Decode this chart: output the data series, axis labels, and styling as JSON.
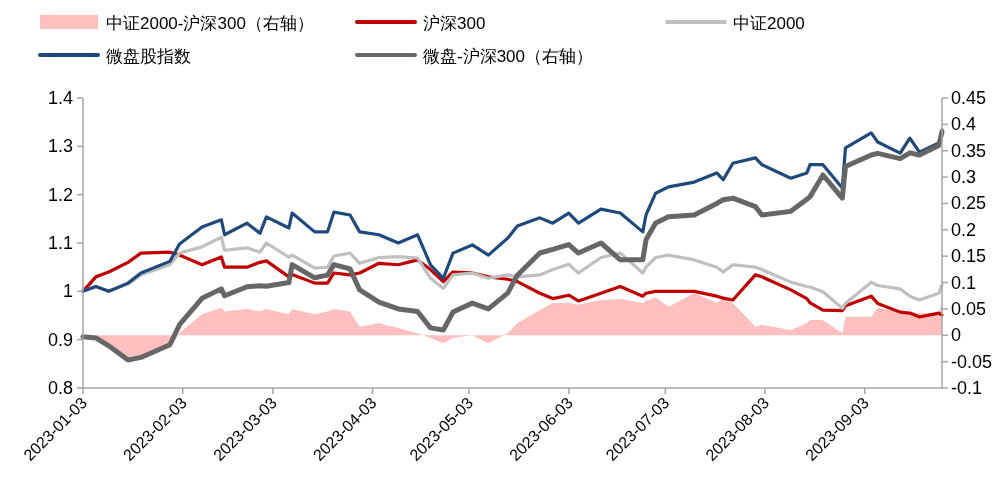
{
  "chart_data": {
    "type": "line",
    "legend": "top",
    "x": [
      "2023-01-03",
      "2023-01-07",
      "2023-01-11",
      "2023-01-17",
      "2023-01-21",
      "2023-01-30",
      "2023-02-02",
      "2023-02-09",
      "2023-02-15",
      "2023-02-16",
      "2023-02-23",
      "2023-02-27",
      "2023-03-01",
      "2023-03-08",
      "2023-03-09",
      "2023-03-16",
      "2023-03-20",
      "2023-03-22",
      "2023-03-27",
      "2023-03-30",
      "2023-04-05",
      "2023-04-11",
      "2023-04-17",
      "2023-04-21",
      "2023-04-25",
      "2023-04-28",
      "2023-05-04",
      "2023-05-09",
      "2023-05-15",
      "2023-05-18",
      "2023-05-25",
      "2023-05-29",
      "2023-06-03",
      "2023-06-06",
      "2023-06-13",
      "2023-06-19",
      "2023-06-26",
      "2023-06-27",
      "2023-06-30",
      "2023-07-04",
      "2023-07-12",
      "2023-07-19",
      "2023-07-21",
      "2023-07-24",
      "2023-07-31",
      "2023-08-02",
      "2023-08-11",
      "2023-08-16",
      "2023-08-17",
      "2023-08-21",
      "2023-08-27",
      "2023-08-28",
      "2023-09-05",
      "2023-09-07",
      "2023-09-14",
      "2023-09-17",
      "2023-09-20",
      "2023-09-26",
      "2023-09-27"
    ],
    "series": [
      {
        "name": "中证2000-沪深300（右轴）",
        "type": "area",
        "axis": "y2",
        "color": "#ffbfbf",
        "values": [
          0,
          -0.005,
          -0.015,
          -0.041,
          -0.038,
          -0.024,
          0.005,
          0.04,
          0.052,
          0.045,
          0.05,
          0.045,
          0.05,
          0.04,
          0.05,
          0.04,
          0.045,
          0.05,
          0.045,
          0.016,
          0.023,
          0.014,
          0.004,
          -0.005,
          -0.015,
          -0.005,
          0,
          -0.015,
          0.004,
          0.023,
          0.048,
          0.061,
          0.061,
          0.058,
          0.067,
          0.069,
          0.061,
          0.065,
          0.072,
          0.054,
          0.08,
          0.061,
          0.07,
          0.061,
          0.016,
          0.02,
          0.01,
          0.023,
          0.029,
          0.029,
          0.004,
          0.035,
          0.035,
          0.052,
          0.044,
          0.044,
          0.042,
          0.042,
          0.061
        ]
      },
      {
        "name": "沪深300",
        "color": "#c00000",
        "values": [
          1.0,
          1.03,
          1.04,
          1.06,
          1.079,
          1.081,
          1.075,
          1.055,
          1.071,
          1.05,
          1.05,
          1.06,
          1.063,
          1.03,
          1.035,
          1.017,
          1.017,
          1.038,
          1.034,
          1.038,
          1.058,
          1.055,
          1.065,
          1.045,
          1.02,
          1.04,
          1.038,
          1.03,
          1.025,
          1.02,
          0.996,
          0.985,
          0.992,
          0.98,
          0.996,
          1.01,
          0.99,
          0.996,
          1.0,
          1.0,
          1.0,
          0.99,
          0.986,
          0.982,
          1.034,
          1.03,
          1.003,
          0.985,
          0.976,
          0.961,
          0.96,
          0.97,
          0.99,
          0.975,
          0.957,
          0.955,
          0.947,
          0.955,
          0.951
        ]
      },
      {
        "name": "中证2000",
        "color": "#bfbfbf",
        "values": [
          1.0,
          1.01,
          1.0,
          1.015,
          1.034,
          1.055,
          1.079,
          1.092,
          1.112,
          1.085,
          1.09,
          1.081,
          1.1,
          1.071,
          1.075,
          1.048,
          1.05,
          1.073,
          1.079,
          1.058,
          1.07,
          1.072,
          1.069,
          1.027,
          1.006,
          1.034,
          1.038,
          1.027,
          1.034,
          1.03,
          1.034,
          1.045,
          1.056,
          1.038,
          1.07,
          1.079,
          1.038,
          1.05,
          1.07,
          1.075,
          1.065,
          1.05,
          1.04,
          1.055,
          1.05,
          1.045,
          1.019,
          1.01,
          1.009,
          0.999,
          0.965,
          0.975,
          1.019,
          1.012,
          1.005,
          0.99,
          0.982,
          0.996,
          1.013
        ]
      },
      {
        "name": "微盘股指数",
        "color": "#1f497d",
        "values": [
          1.0,
          1.01,
          1.0,
          1.017,
          1.038,
          1.062,
          1.098,
          1.133,
          1.148,
          1.117,
          1.141,
          1.12,
          1.154,
          1.131,
          1.162,
          1.123,
          1.123,
          1.164,
          1.158,
          1.123,
          1.117,
          1.1,
          1.117,
          1.055,
          1.027,
          1.079,
          1.096,
          1.075,
          1.11,
          1.135,
          1.152,
          1.141,
          1.162,
          1.141,
          1.17,
          1.162,
          1.123,
          1.158,
          1.203,
          1.216,
          1.226,
          1.245,
          1.231,
          1.265,
          1.276,
          1.262,
          1.234,
          1.245,
          1.262,
          1.262,
          1.214,
          1.297,
          1.328,
          1.309,
          1.286,
          1.317,
          1.288,
          1.307,
          1.334
        ]
      },
      {
        "name": "微盘-沪深300（右轴）",
        "axis": "y2",
        "color": "#666666",
        "values": [
          -0.003,
          -0.005,
          -0.02,
          -0.047,
          -0.042,
          -0.018,
          0.02,
          0.07,
          0.088,
          0.075,
          0.092,
          0.094,
          0.093,
          0.1,
          0.134,
          0.109,
          0.114,
          0.134,
          0.126,
          0.086,
          0.063,
          0.05,
          0.045,
          0.014,
          0.01,
          0.044,
          0.061,
          0.05,
          0.08,
          0.114,
          0.156,
          0.163,
          0.172,
          0.156,
          0.175,
          0.143,
          0.143,
          0.181,
          0.213,
          0.225,
          0.228,
          0.25,
          0.257,
          0.26,
          0.244,
          0.228,
          0.235,
          0.258,
          0.263,
          0.304,
          0.26,
          0.32,
          0.342,
          0.345,
          0.335,
          0.346,
          0.342,
          0.36,
          0.386
        ]
      }
    ],
    "xlim": [
      "2023-01-03",
      "2023-09-27"
    ],
    "xticks": [
      "2023-01-03",
      "2023-02-03",
      "2023-03-03",
      "2023-04-03",
      "2023-05-03",
      "2023-06-03",
      "2023-07-03",
      "2023-08-03",
      "2023-09-03"
    ],
    "ylim": [
      0.8,
      1.4
    ],
    "yticks": [
      0.8,
      0.9,
      1,
      1.1,
      1.2,
      1.3,
      1.4
    ],
    "y2lim": [
      -0.1,
      0.45
    ],
    "y2ticks": [
      -0.1,
      -0.05,
      0,
      0.05,
      0.1,
      0.15,
      0.2,
      0.25,
      0.3,
      0.35,
      0.4,
      0.45
    ]
  }
}
